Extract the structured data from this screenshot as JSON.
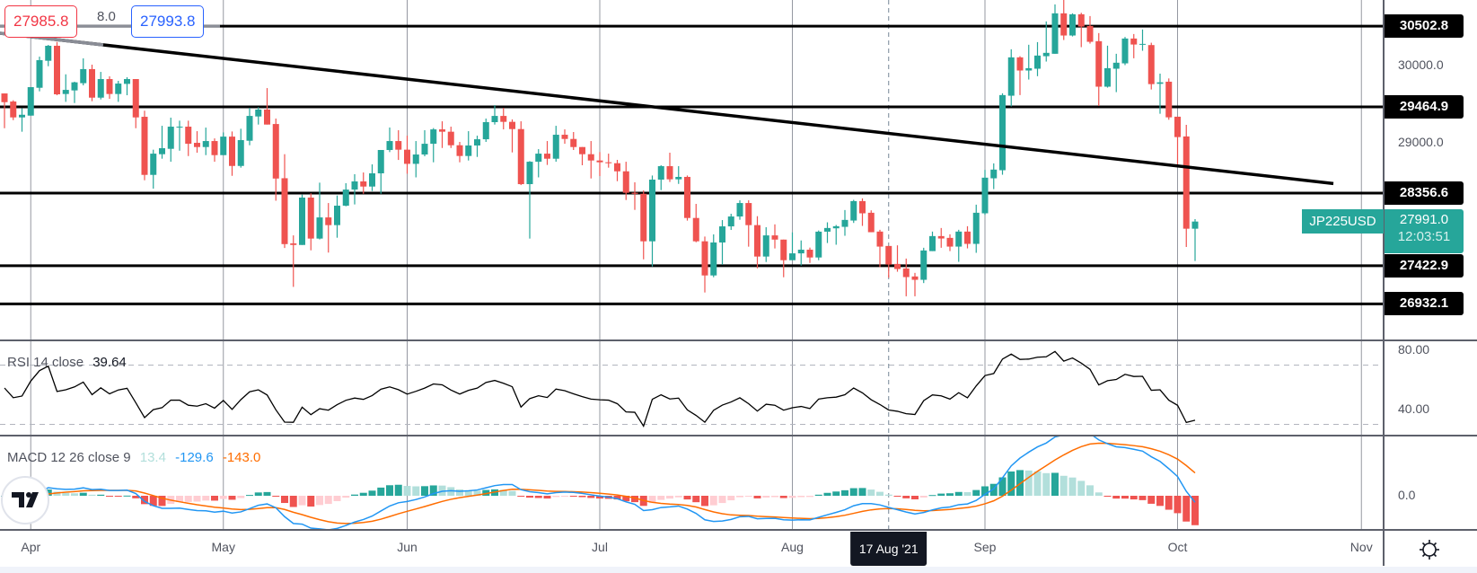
{
  "chart_data": {
    "type": "candlestick",
    "symbol": "JP225USD",
    "last_price": "27991.0",
    "countdown": "12:03:51",
    "ohlc": [
      [
        29638,
        29638,
        29191,
        29526
      ],
      [
        29534,
        29550,
        29295,
        29330
      ],
      [
        29330,
        29446,
        29146,
        29364
      ],
      [
        29353,
        29719,
        29353,
        29719
      ],
      [
        29711,
        30111,
        29665,
        30066
      ],
      [
        30058,
        30262,
        29988,
        30251
      ],
      [
        30251,
        30301,
        29615,
        29627
      ],
      [
        29631,
        29884,
        29530,
        29684
      ],
      [
        29677,
        29789,
        29515,
        29781
      ],
      [
        29770,
        30089,
        29742,
        29951
      ],
      [
        29951,
        30008,
        29538,
        29584
      ],
      [
        29584,
        29915,
        29561,
        29823
      ],
      [
        29823,
        29858,
        29569,
        29631
      ],
      [
        29631,
        29800,
        29530,
        29765
      ],
      [
        29761,
        29846,
        29615,
        29823
      ],
      [
        29823,
        29823,
        29191,
        29330
      ],
      [
        29338,
        29416,
        28522,
        28591
      ],
      [
        28591,
        28915,
        28414,
        28864
      ],
      [
        28857,
        29222,
        28799,
        28934
      ],
      [
        28926,
        29327,
        28760,
        29211
      ],
      [
        29203,
        29288,
        28902,
        29211
      ],
      [
        29211,
        29288,
        28833,
        28991
      ],
      [
        29003,
        29153,
        28876,
        28949
      ],
      [
        28949,
        29199,
        28845,
        29026
      ],
      [
        29026,
        29060,
        28760,
        28845
      ],
      [
        28845,
        29137,
        28845,
        29083
      ],
      [
        29083,
        29149,
        28579,
        28706
      ],
      [
        28706,
        29184,
        28684,
        29038
      ],
      [
        29030,
        29453,
        28972,
        29349
      ],
      [
        29342,
        29461,
        29238,
        29431
      ],
      [
        29431,
        29707,
        29238,
        29238
      ],
      [
        29245,
        29315,
        28259,
        28544
      ],
      [
        28548,
        28857,
        27651,
        27701
      ],
      [
        27710,
        27813,
        27151,
        27690
      ],
      [
        27690,
        28337,
        27690,
        28299
      ],
      [
        28299,
        28354,
        27621,
        27772
      ],
      [
        27772,
        28491,
        27761,
        28044
      ],
      [
        28044,
        28229,
        27592,
        27945
      ],
      [
        27945,
        28326,
        27783,
        28195
      ],
      [
        28195,
        28484,
        28187,
        28402
      ],
      [
        28402,
        28600,
        28211,
        28507
      ],
      [
        28507,
        28622,
        28348,
        28441
      ],
      [
        28441,
        28726,
        28383,
        28611
      ],
      [
        28611,
        28911,
        28348,
        28911
      ],
      [
        28911,
        29200,
        28884,
        29026
      ],
      [
        29026,
        29165,
        28783,
        28915
      ],
      [
        28915,
        29095,
        28606,
        28733
      ],
      [
        28733,
        29026,
        28559,
        28853
      ],
      [
        28853,
        29165,
        28830,
        28991
      ],
      [
        28991,
        29193,
        28753,
        29176
      ],
      [
        29176,
        29280,
        28937,
        29146
      ],
      [
        29146,
        29211,
        28937,
        28972
      ],
      [
        28972,
        29015,
        28753,
        28834
      ],
      [
        28834,
        29153,
        28776,
        28969
      ],
      [
        28969,
        29095,
        28822,
        29049
      ],
      [
        29049,
        29315,
        29015,
        29269
      ],
      [
        29269,
        29488,
        29238,
        29349
      ],
      [
        29349,
        29453,
        29176,
        29273
      ],
      [
        29273,
        29304,
        28880,
        29180
      ],
      [
        29180,
        29280,
        28460,
        28472
      ],
      [
        28472,
        28768,
        27772,
        28760
      ],
      [
        28760,
        28922,
        28559,
        28864
      ],
      [
        28864,
        29026,
        28719,
        28799
      ],
      [
        28799,
        29222,
        28760,
        29107
      ],
      [
        29107,
        29176,
        28991,
        29053
      ],
      [
        29053,
        29142,
        28911,
        28949
      ],
      [
        28949,
        28949,
        28715,
        28857
      ],
      [
        28857,
        29026,
        28545,
        28776
      ],
      [
        28776,
        28884,
        28576,
        28753
      ],
      [
        28753,
        28864,
        28684,
        28741
      ],
      [
        28741,
        28784,
        28510,
        28637
      ],
      [
        28637,
        28760,
        28268,
        28361
      ],
      [
        28361,
        28496,
        28141,
        28348
      ],
      [
        28348,
        28391,
        27505,
        27737
      ],
      [
        27737,
        28583,
        27413,
        28530
      ],
      [
        28530,
        28715,
        28395,
        28703
      ],
      [
        28703,
        28876,
        28500,
        28534
      ],
      [
        28534,
        28703,
        28475,
        28565
      ],
      [
        28565,
        28583,
        28003,
        28037
      ],
      [
        28037,
        28218,
        27725,
        27737
      ],
      [
        27737,
        27798,
        27079,
        27298
      ],
      [
        27298,
        27826,
        27275,
        27722
      ],
      [
        27722,
        28010,
        27436,
        27929
      ],
      [
        27929,
        28091,
        27883,
        28056
      ],
      [
        28056,
        28264,
        28014,
        28229
      ],
      [
        28229,
        28264,
        27668,
        27945
      ],
      [
        27945,
        28060,
        27390,
        27541
      ],
      [
        27541,
        27918,
        27471,
        27813
      ],
      [
        27813,
        27955,
        27645,
        27759
      ],
      [
        27759,
        27759,
        27275,
        27494
      ],
      [
        27494,
        27852,
        27494,
        27582
      ],
      [
        27582,
        27748,
        27425,
        27629
      ],
      [
        27629,
        27656,
        27459,
        27529
      ],
      [
        27529,
        27876,
        27494,
        27861
      ],
      [
        27861,
        27981,
        27715,
        27908
      ],
      [
        27904,
        27947,
        27693,
        27931
      ],
      [
        27923,
        28139,
        27808,
        28012
      ],
      [
        28004,
        28270,
        27973,
        28254
      ],
      [
        28254,
        28289,
        27935,
        28097
      ],
      [
        28104,
        28135,
        27854,
        27854
      ],
      [
        27862,
        27885,
        27404,
        27669
      ],
      [
        27677,
        27677,
        27269,
        27438
      ],
      [
        27446,
        27685,
        27346,
        27381
      ],
      [
        27388,
        27515,
        27030,
        27277
      ],
      [
        27285,
        27331,
        27030,
        27242
      ],
      [
        27242,
        27654,
        27200,
        27619
      ],
      [
        27611,
        27862,
        27611,
        27804
      ],
      [
        27804,
        27908,
        27654,
        27773
      ],
      [
        27781,
        27827,
        27611,
        27669
      ],
      [
        27669,
        27885,
        27473,
        27862
      ],
      [
        27862,
        27931,
        27646,
        27704
      ],
      [
        27704,
        28208,
        27589,
        28104
      ],
      [
        28097,
        28655,
        28077,
        28555
      ],
      [
        28547,
        28739,
        28408,
        28659
      ],
      [
        28651,
        29640,
        28593,
        29617
      ],
      [
        29609,
        30206,
        29471,
        30102
      ],
      [
        30102,
        30117,
        29617,
        29933
      ],
      [
        29933,
        30264,
        29817,
        29963
      ],
      [
        29956,
        30298,
        29860,
        30125
      ],
      [
        30117,
        30564,
        30048,
        30160
      ],
      [
        30148,
        30783,
        30148,
        30668
      ],
      [
        30668,
        30841,
        30325,
        30383
      ],
      [
        30383,
        30668,
        30371,
        30656
      ],
      [
        30656,
        30675,
        30233,
        30498
      ],
      [
        30506,
        30633,
        30279,
        30302
      ],
      [
        30310,
        30414,
        29478,
        29725
      ],
      [
        29725,
        30252,
        29713,
        29963
      ],
      [
        29956,
        30148,
        29655,
        30033
      ],
      [
        30025,
        30364,
        30002,
        30344
      ],
      [
        30344,
        30402,
        30090,
        30267
      ],
      [
        30267,
        30460,
        30187,
        30275
      ],
      [
        30260,
        30290,
        29689,
        29758
      ],
      [
        29762,
        29893,
        29377,
        29781
      ],
      [
        29789,
        29831,
        29300,
        29331
      ],
      [
        29339,
        29339,
        28723,
        29077
      ],
      [
        29085,
        29235,
        27664,
        27899
      ],
      [
        27899,
        28022,
        27484,
        27991
      ]
    ],
    "price_ticks": [
      {
        "value": 30000,
        "label": "30000.0"
      },
      {
        "value": 29000,
        "label": "29000.0"
      }
    ],
    "levels": [
      {
        "value": 30502.8,
        "label": "30502.8"
      },
      {
        "value": 29464.9,
        "label": "29464.9"
      },
      {
        "value": 28356.6,
        "label": "28356.6"
      },
      {
        "value": 27422.9,
        "label": "27422.9"
      },
      {
        "value": 26932.1,
        "label": "26932.1"
      }
    ],
    "trendline": {
      "start": {
        "bar": -0.5,
        "price": 30412
      },
      "end": {
        "bar": 151.8,
        "price": 28480
      }
    },
    "time_labels": [
      {
        "label": "Apr",
        "bar": 3
      },
      {
        "label": "May",
        "bar": 25
      },
      {
        "label": "Jun",
        "bar": 46
      },
      {
        "label": "Jul",
        "bar": 68
      },
      {
        "label": "Aug",
        "bar": 90
      },
      {
        "label": "Sep",
        "bar": 112
      },
      {
        "label": "Oct",
        "bar": 134
      },
      {
        "label": "Nov",
        "bar": 155
      }
    ],
    "crosshair": {
      "bar": 101,
      "label": "17 Aug '21"
    },
    "measure": {
      "start": "27985.8",
      "diff": "8.0",
      "end": "27993.8"
    },
    "rsi": {
      "label": "RSI 14 close",
      "value": "39.64",
      "period": 14,
      "bands": [
        70,
        30
      ],
      "ticks": [
        {
          "value": 80,
          "label": "80.00"
        },
        {
          "value": 40,
          "label": "40.00"
        }
      ]
    },
    "macd": {
      "label": "MACD 12 26 close 9",
      "hist_value": "13.4",
      "macd_value": "-129.6",
      "signal_value": "-143.0",
      "fast": 12,
      "slow": 26,
      "signal_period": 9,
      "ticks": [
        {
          "value": 0,
          "label": "0.0"
        }
      ]
    }
  },
  "colors": {
    "up": "#26a69a",
    "down": "#ef5350",
    "hist_up_strong": "#26a69a",
    "hist_up_weak": "#b2dfdb",
    "hist_down_strong": "#ef5350",
    "hist_down_weak": "#ffcdd2",
    "macd": "#2196f3",
    "signal": "#ff6d00",
    "rsi": "#000000",
    "measure_start": "#f23645",
    "measure_end": "#2962ff"
  }
}
